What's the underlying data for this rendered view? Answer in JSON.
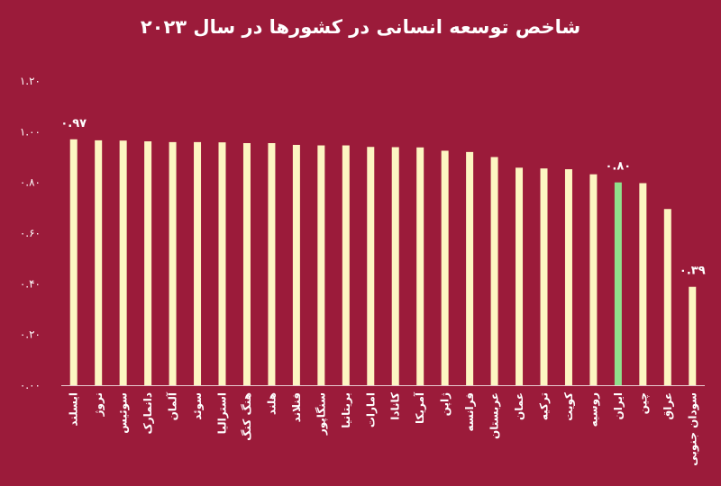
{
  "chart_data": {
    "type": "bar",
    "title": "شاخص توسعه انسانی در کشورها در سال ۲۰۲۳",
    "xlabel": "",
    "ylabel": "",
    "ylim": [
      0,
      1.2
    ],
    "yticks": [
      "۰.۰۰",
      "۰.۲۰",
      "۰.۴۰",
      "۰.۶۰",
      "۰.۸۰",
      "۱.۰۰",
      "۱.۲۰"
    ],
    "categories": [
      "ایسلند",
      "نروژ",
      "سوئیس",
      "دانمارک",
      "آلمان",
      "سوئد",
      "استرالیا",
      "هنگ کنگ",
      "هلند",
      "فنلاند",
      "سنگاپور",
      "بریتانیا",
      "امارات",
      "کانادا",
      "آمریکا",
      "ژاپن",
      "فرانسه",
      "عربستان",
      "عمان",
      "ترکیه",
      "کویت",
      "روسیه",
      "ایران",
      "چین",
      "عراق",
      "سودان جنوبی"
    ],
    "values": [
      0.97,
      0.966,
      0.965,
      0.962,
      0.959,
      0.959,
      0.958,
      0.955,
      0.955,
      0.948,
      0.946,
      0.946,
      0.94,
      0.939,
      0.938,
      0.925,
      0.92,
      0.9,
      0.858,
      0.855,
      0.852,
      0.832,
      0.8,
      0.797,
      0.695,
      0.388
    ],
    "data_labels": {
      "0": "۰.۹۷",
      "22": "۰.۸۰",
      "25": "۰.۳۹"
    },
    "grid": false,
    "legend": "none",
    "colors": {
      "background": "#9b1b3a",
      "bar": "#fdf6c2",
      "highlight": "#90e08c",
      "text": "#ffffff",
      "axis": "#e8c9cf"
    },
    "highlight_index": 22
  }
}
